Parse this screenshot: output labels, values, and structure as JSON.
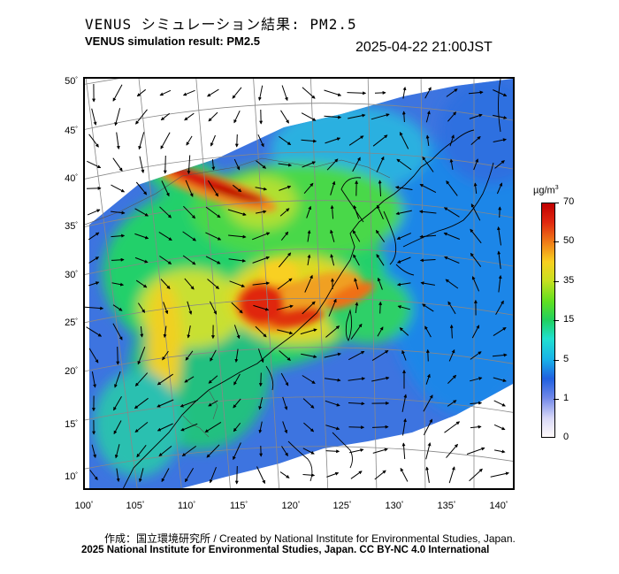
{
  "header": {
    "title_jp": "VENUS シミュレーション結果: PM2.5",
    "title_en": "VENUS simulation result: PM2.5",
    "timestamp": "2025-04-22 21:00JST"
  },
  "map": {
    "lat_labels": [
      "50",
      "45",
      "40",
      "35",
      "30",
      "25",
      "20",
      "15",
      "10"
    ],
    "lon_labels": [
      "100",
      "105",
      "110",
      "115",
      "120",
      "125",
      "130",
      "135",
      "140"
    ],
    "degree_symbol": "˚"
  },
  "colorbar": {
    "unit_base": "µg/m",
    "unit_exp": "3",
    "ticks": [
      "70",
      "50",
      "35",
      "15",
      "5",
      "1",
      "0"
    ],
    "colors": [
      "#fffafa",
      "#d8d8f8",
      "#6e86e8",
      "#2060e0",
      "#18b0e8",
      "#20e0d0",
      "#20d060",
      "#60e020",
      "#c8e020",
      "#f8d020",
      "#f08018",
      "#e02810",
      "#c00000"
    ]
  },
  "footer": {
    "credit_jp_en": "作成：国立環境研究所 / Created by National Institute for Environmental Studies, Japan.",
    "copyright": "2025 National Institute for Environmental Studies, Japan. CC BY-NC 4.0 International"
  }
}
